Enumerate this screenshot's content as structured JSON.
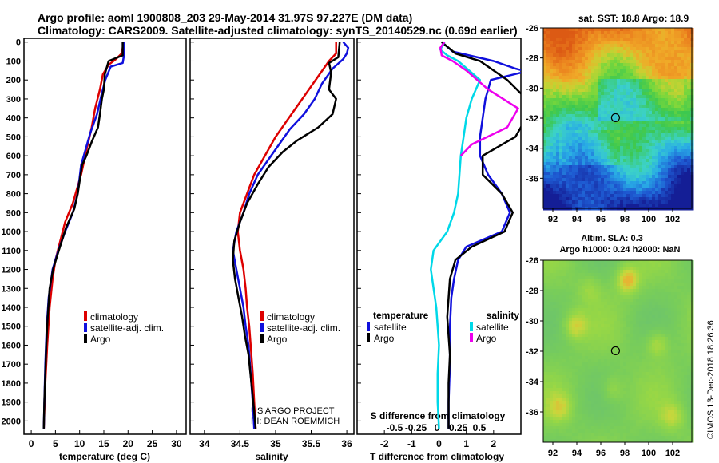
{
  "header": {
    "line1": "Argo profile: aoml 1900808_203 29-May-2014 31.97S 97.227E (DM data)",
    "line2": "Climatology: CARS2009. Satellite-adjusted climatology: synTS_20140529.nc (0.69d earlier)"
  },
  "depth_axis": {
    "ticks": [
      0,
      100,
      200,
      300,
      400,
      500,
      600,
      700,
      800,
      900,
      1000,
      1100,
      1200,
      1300,
      1400,
      1500,
      1600,
      1700,
      1800,
      1900,
      2000
    ],
    "ylim": [
      -20,
      2070
    ]
  },
  "colors": {
    "climatology": "#dd0000",
    "satellite": "#1010dd",
    "argo": "#000000",
    "salinity_sat": "#00d8e8",
    "salinity_argo": "#ee00ee"
  },
  "chart_data": [
    {
      "type": "line",
      "xlabel": "temperature (deg C)",
      "xlim": [
        -1.5,
        32
      ],
      "xticks": [
        0,
        5,
        10,
        15,
        20,
        25,
        30
      ],
      "legend": [
        "climatology",
        "satellite-adj. clim.",
        "Argo"
      ],
      "legend_position": "bottom-right",
      "series": [
        {
          "name": "climatology",
          "color": "#dd0000",
          "points": [
            [
              19.1,
              0
            ],
            [
              18.7,
              60
            ],
            [
              17.5,
              90
            ],
            [
              16,
              120
            ],
            [
              14.8,
              170
            ],
            [
              14.2,
              250
            ],
            [
              13.2,
              350
            ],
            [
              12.5,
              450
            ],
            [
              11.5,
              560
            ],
            [
              10.3,
              700
            ],
            [
              8.6,
              850
            ],
            [
              7,
              950
            ],
            [
              6,
              1050
            ],
            [
              5,
              1150
            ],
            [
              4.4,
              1250
            ],
            [
              3.8,
              1400
            ],
            [
              3.3,
              1600
            ],
            [
              2.9,
              1800
            ],
            [
              2.6,
              2040
            ]
          ]
        },
        {
          "name": "satellite-adj. clim.",
          "color": "#1010dd",
          "points": [
            [
              19.1,
              0
            ],
            [
              19.1,
              80
            ],
            [
              18.9,
              110
            ],
            [
              16.4,
              130
            ],
            [
              15.3,
              200
            ],
            [
              14.5,
              280
            ],
            [
              13.6,
              380
            ],
            [
              12.2,
              480
            ],
            [
              11.3,
              560
            ],
            [
              10.3,
              650
            ],
            [
              9.6,
              800
            ],
            [
              8.6,
              900
            ],
            [
              7,
              1000
            ],
            [
              5.6,
              1100
            ],
            [
              4.4,
              1200
            ],
            [
              3.6,
              1350
            ],
            [
              3.2,
              1500
            ],
            [
              2.9,
              1700
            ],
            [
              2.7,
              1900
            ],
            [
              2.6,
              2040
            ]
          ]
        },
        {
          "name": "Argo",
          "color": "#000000",
          "points": [
            [
              18.9,
              0
            ],
            [
              18.9,
              70
            ],
            [
              16,
              100
            ],
            [
              15.2,
              170
            ],
            [
              15,
              250
            ],
            [
              14.6,
              300
            ],
            [
              14.2,
              380
            ],
            [
              13.8,
              450
            ],
            [
              12.6,
              520
            ],
            [
              11.4,
              600
            ],
            [
              10.5,
              650
            ],
            [
              10.2,
              700
            ],
            [
              9.6,
              800
            ],
            [
              8.9,
              880
            ],
            [
              7.2,
              980
            ],
            [
              5.7,
              1100
            ],
            [
              4.5,
              1200
            ],
            [
              3.8,
              1300
            ],
            [
              3.4,
              1450
            ],
            [
              3.1,
              1600
            ],
            [
              2.9,
              1750
            ],
            [
              2.7,
              1900
            ],
            [
              2.6,
              2040
            ]
          ]
        }
      ]
    },
    {
      "type": "line",
      "xlabel": "salinity",
      "xlim": [
        33.8,
        36.1
      ],
      "xticks": [
        34,
        34.5,
        35,
        35.5,
        36
      ],
      "xticklabels": [
        "34",
        "34.5",
        "35",
        "35.5",
        "36"
      ],
      "legend": [
        "climatology",
        "satellite-adj. clim.",
        "Argo"
      ],
      "legend_position": "bottom-right",
      "annotation": [
        "US ARGO PROJECT",
        "PI: DEAN ROEMMICH"
      ],
      "series": [
        {
          "name": "climatology",
          "color": "#dd0000",
          "points": [
            [
              35.85,
              0
            ],
            [
              35.85,
              60
            ],
            [
              35.75,
              100
            ],
            [
              35.6,
              180
            ],
            [
              35.45,
              260
            ],
            [
              35.3,
              340
            ],
            [
              35.15,
              420
            ],
            [
              35,
              500
            ],
            [
              34.85,
              600
            ],
            [
              34.7,
              700
            ],
            [
              34.6,
              800
            ],
            [
              34.5,
              900
            ],
            [
              34.47,
              1000
            ],
            [
              34.5,
              1100
            ],
            [
              34.55,
              1200
            ],
            [
              34.58,
              1300
            ],
            [
              34.6,
              1400
            ],
            [
              34.63,
              1500
            ],
            [
              34.65,
              1600
            ],
            [
              34.68,
              1750
            ],
            [
              34.7,
              1900
            ],
            [
              34.72,
              2040
            ]
          ]
        },
        {
          "name": "satellite-adj. clim.",
          "color": "#1010dd",
          "points": [
            [
              35.95,
              0
            ],
            [
              36.02,
              30
            ],
            [
              36,
              60
            ],
            [
              35.95,
              90
            ],
            [
              35.8,
              140
            ],
            [
              35.65,
              220
            ],
            [
              35.55,
              300
            ],
            [
              35.4,
              380
            ],
            [
              35.2,
              460
            ],
            [
              35.05,
              540
            ],
            [
              34.9,
              620
            ],
            [
              34.75,
              700
            ],
            [
              34.63,
              800
            ],
            [
              34.55,
              900
            ],
            [
              34.45,
              1000
            ],
            [
              34.4,
              1100
            ],
            [
              34.45,
              1200
            ],
            [
              34.5,
              1300
            ],
            [
              34.55,
              1400
            ],
            [
              34.58,
              1500
            ],
            [
              34.62,
              1600
            ],
            [
              34.65,
              1750
            ],
            [
              34.68,
              1900
            ],
            [
              34.7,
              2040
            ]
          ]
        },
        {
          "name": "Argo",
          "color": "#000000",
          "points": [
            [
              35.9,
              0
            ],
            [
              35.88,
              80
            ],
            [
              35.75,
              110
            ],
            [
              35.78,
              160
            ],
            [
              35.75,
              250
            ],
            [
              35.85,
              300
            ],
            [
              35.8,
              380
            ],
            [
              35.6,
              450
            ],
            [
              35.3,
              520
            ],
            [
              35.1,
              580
            ],
            [
              34.9,
              660
            ],
            [
              34.75,
              750
            ],
            [
              34.6,
              850
            ],
            [
              34.5,
              950
            ],
            [
              34.42,
              1050
            ],
            [
              34.4,
              1150
            ],
            [
              34.43,
              1250
            ],
            [
              34.48,
              1350
            ],
            [
              34.53,
              1450
            ],
            [
              34.57,
              1550
            ],
            [
              34.62,
              1650
            ],
            [
              34.66,
              1800
            ],
            [
              34.7,
              1950
            ],
            [
              34.72,
              2040
            ]
          ]
        }
      ]
    },
    {
      "type": "line",
      "xlabel": "T difference from climatology",
      "xlim": [
        -3,
        3
      ],
      "xticks": [
        -2,
        -1,
        0,
        1,
        2
      ],
      "xlabel_top": "S difference from climatology",
      "xticks_top": [
        -0.5,
        -0.25,
        0,
        0.25,
        0.5
      ],
      "xticklabels_top": [
        "-0.5",
        "-0.25",
        "0",
        "0.25",
        "0.5"
      ],
      "legend_left_title": "temperature",
      "legend_left": [
        "satellite",
        "Argo"
      ],
      "legend_right_title": "salinity",
      "legend_right": [
        "satellite",
        "Argo"
      ],
      "series": [
        {
          "name": "temperature satellite",
          "color": "#1010dd",
          "points": [
            [
              0.1,
              0
            ],
            [
              0.5,
              50
            ],
            [
              2,
              100
            ],
            [
              2.8,
              140
            ],
            [
              3.2,
              155
            ],
            [
              1.9,
              200
            ],
            [
              1.7,
              300
            ],
            [
              1.6,
              400
            ],
            [
              1.5,
              500
            ],
            [
              1.5,
              600
            ],
            [
              1.8,
              700
            ],
            [
              2.3,
              800
            ],
            [
              2.6,
              900
            ],
            [
              2.3,
              1000
            ],
            [
              1,
              1080
            ],
            [
              0.7,
              1150
            ],
            [
              0.55,
              1250
            ],
            [
              0.45,
              1350
            ],
            [
              0.4,
              1500
            ],
            [
              0.4,
              1700
            ],
            [
              0.35,
              1900
            ],
            [
              0.35,
              2040
            ]
          ]
        },
        {
          "name": "temperature Argo",
          "color": "#000000",
          "points": [
            [
              0.1,
              0
            ],
            [
              0.6,
              60
            ],
            [
              1.5,
              100
            ],
            [
              2.5,
              200
            ],
            [
              3.2,
              300
            ],
            [
              3.2,
              400
            ],
            [
              2.8,
              500
            ],
            [
              1.6,
              600
            ],
            [
              1.6,
              700
            ],
            [
              2.3,
              800
            ],
            [
              2.7,
              900
            ],
            [
              2.4,
              1000
            ],
            [
              1.2,
              1080
            ],
            [
              0.6,
              1150
            ],
            [
              0.4,
              1250
            ],
            [
              0.35,
              1350
            ],
            [
              0.3,
              1450
            ],
            [
              0.35,
              1550
            ],
            [
              0.4,
              1650
            ],
            [
              0.35,
              1800
            ],
            [
              0.35,
              2040
            ]
          ]
        },
        {
          "name": "salinity satellite",
          "color": "#00d8e8",
          "points": [
            [
              0.2,
              0
            ],
            [
              0.05,
              40
            ],
            [
              0.3,
              70
            ],
            [
              0.7,
              100
            ],
            [
              1.5,
              200
            ],
            [
              1.2,
              300
            ],
            [
              1,
              400
            ],
            [
              0.9,
              500
            ],
            [
              0.8,
              600
            ],
            [
              0.75,
              700
            ],
            [
              0.7,
              800
            ],
            [
              0.55,
              900
            ],
            [
              0.3,
              1000
            ],
            [
              -0.2,
              1100
            ],
            [
              -0.3,
              1200
            ],
            [
              -0.2,
              1300
            ],
            [
              -0.1,
              1400
            ],
            [
              -0.05,
              1500
            ],
            [
              0,
              1600
            ],
            [
              -0.05,
              1750
            ],
            [
              -0.05,
              1900
            ],
            [
              0,
              2040
            ]
          ]
        },
        {
          "name": "salinity Argo",
          "color": "#ee00ee",
          "points": [
            [
              0.2,
              0
            ],
            [
              0.05,
              30
            ],
            [
              0.1,
              70
            ],
            [
              0.5,
              100
            ],
            [
              1.0,
              150
            ],
            [
              1.8,
              250
            ],
            [
              2.9,
              350
            ],
            [
              2.5,
              450
            ],
            [
              1.2,
              540
            ],
            [
              0.8,
              600
            ]
          ]
        }
      ]
    },
    {
      "type": "heatmap",
      "title": "sat. SST: 18.8 Argo: 18.9",
      "xticks": [
        92,
        94,
        96,
        98,
        100,
        102
      ],
      "yticks": [
        -26,
        -28,
        -30,
        -32,
        -34,
        -36
      ],
      "xlim": [
        91.2,
        103.6
      ],
      "ylim": [
        -38,
        -26
      ],
      "marker": [
        97.227,
        -31.97
      ]
    },
    {
      "type": "heatmap",
      "title": "Altim. SLA: 0.3",
      "subtitle": "Argo h1000: 0.24 h2000: NaN",
      "xticks": [
        92,
        94,
        96,
        98,
        100,
        102
      ],
      "yticks": [
        -26,
        -28,
        -30,
        -32,
        -34,
        -36
      ],
      "xlim": [
        91.2,
        103.6
      ],
      "ylim": [
        -38,
        -26
      ],
      "marker": [
        97.227,
        -31.97
      ]
    }
  ],
  "footer": {
    "credit": "©IMOS 13-Dec-2018 18:26:36"
  }
}
